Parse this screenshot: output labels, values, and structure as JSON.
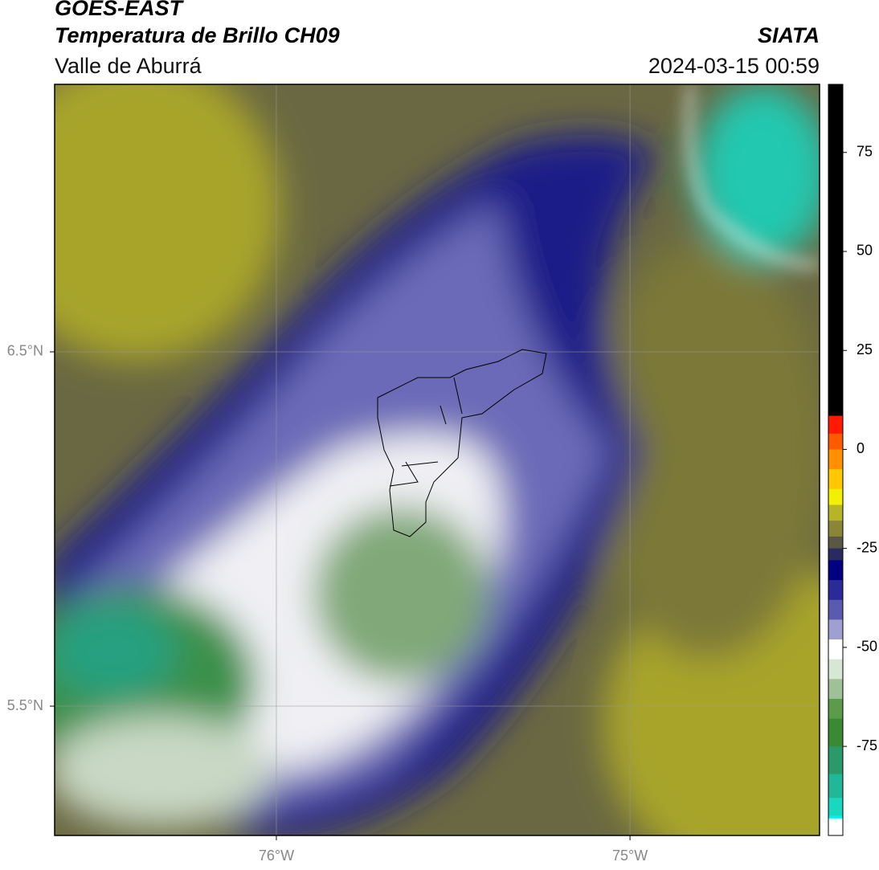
{
  "header": {
    "title": "GOES-EAST",
    "subtitle": "Temperatura de Brillo CH09",
    "region": "Valle de Aburrá",
    "source": "SIATA",
    "datetime": "2024-03-15 00:59"
  },
  "map": {
    "xlim": [
      -76.627,
      -74.464
    ],
    "ylim": [
      5.135,
      7.255
    ],
    "xticks": [
      {
        "value": -76,
        "label": "76°W"
      },
      {
        "value": -75,
        "label": "75°W"
      }
    ],
    "yticks": [
      {
        "value": 6.5,
        "label": "6.5°N"
      },
      {
        "value": 5.5,
        "label": "5.5°N"
      }
    ],
    "grid": true
  },
  "colorbar": {
    "clim": [
      -97.5,
      92.2
    ],
    "ticks": [
      75,
      50,
      25,
      0,
      -25,
      -50,
      -75
    ],
    "colormap": [
      {
        "value": 92.2,
        "color": "#000000"
      },
      {
        "value": 8.5,
        "color": "#ff1a00"
      },
      {
        "value": 4,
        "color": "#ff5a00"
      },
      {
        "value": 0,
        "color": "#ff9000"
      },
      {
        "value": -5,
        "color": "#ffc800"
      },
      {
        "value": -10,
        "color": "#f0f000"
      },
      {
        "value": -14,
        "color": "#b8b428"
      },
      {
        "value": -18,
        "color": "#8a8636"
      },
      {
        "value": -22,
        "color": "#5a5844"
      },
      {
        "value": -25,
        "color": "#2a2a60"
      },
      {
        "value": -28,
        "color": "#000080"
      },
      {
        "value": -33,
        "color": "#2a2a98"
      },
      {
        "value": -38,
        "color": "#5a5ab0"
      },
      {
        "value": -43,
        "color": "#a0a0d0"
      },
      {
        "value": -48,
        "color": "#ffffff"
      },
      {
        "value": -53,
        "color": "#d8e6d4"
      },
      {
        "value": -58,
        "color": "#a0c098"
      },
      {
        "value": -63,
        "color": "#5c9a4c"
      },
      {
        "value": -68,
        "color": "#3a8a34"
      },
      {
        "value": -75,
        "color": "#2a9a6a"
      },
      {
        "value": -82,
        "color": "#20b898"
      },
      {
        "value": -88,
        "color": "#18d8c0"
      },
      {
        "value": -92.5,
        "color": "#00f0f0"
      },
      {
        "value": -93.2,
        "color": "#ffffff"
      }
    ]
  }
}
